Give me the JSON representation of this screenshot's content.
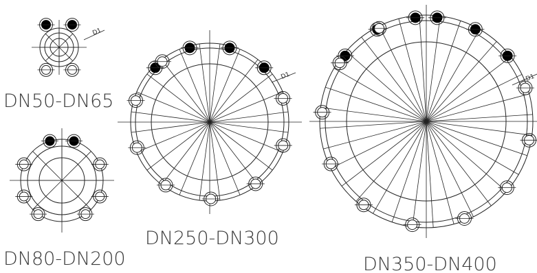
{
  "titles": {
    "dn50": "DN50-DN65",
    "dn80": "DN80-DN200",
    "dn250": "DN250-DN300",
    "dn350": "DN350-DN400"
  },
  "dim_label": "D1",
  "flanges": [
    {
      "id": "dn50-dn65",
      "title_key": "dn50",
      "bolts": 4,
      "filled_bolts": 2,
      "rays": 8
    },
    {
      "id": "dn80-dn200",
      "title_key": "dn80",
      "bolts": 8,
      "filled_bolts": 2,
      "rays": 8
    },
    {
      "id": "dn250-dn300",
      "title_key": "dn250",
      "bolts": 12,
      "filled_bolts": 4,
      "rays": 24
    },
    {
      "id": "dn350-dn400",
      "title_key": "dn350",
      "bolts": 16,
      "filled_bolts": 6,
      "rays": 32
    }
  ],
  "colors": {
    "line": "#222222",
    "filled_hole": "#000000",
    "title": "#3a3a3a"
  }
}
